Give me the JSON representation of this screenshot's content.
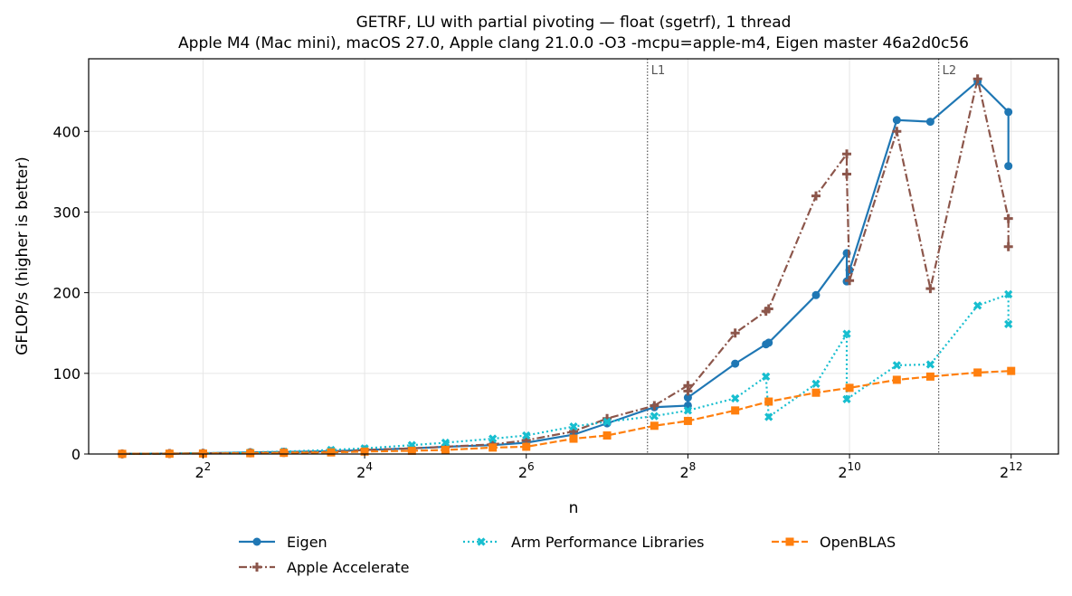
{
  "chart_data": {
    "type": "line",
    "title": "GETRF, LU with partial pivoting — float (sgetrf), 1 thread",
    "subtitle": "Apple M4 (Mac mini), macOS 27.0, Apple clang 21.0.0 -O3 -mcpu=apple-m4, Eigen master 46a2d0c56",
    "xlabel": "n",
    "ylabel": "GFLOP/s (higher is better)",
    "xscale": "log2",
    "xlim": [
      1.5,
      6144
    ],
    "ylim": [
      0,
      490
    ],
    "x_ticks": [
      {
        "base": "2",
        "exp": "2"
      },
      {
        "base": "2",
        "exp": "4"
      },
      {
        "base": "2",
        "exp": "6"
      },
      {
        "base": "2",
        "exp": "8"
      },
      {
        "base": "2",
        "exp": "10"
      },
      {
        "base": "2",
        "exp": "12"
      }
    ],
    "y_ticks": [
      "0",
      "100",
      "200",
      "300",
      "400"
    ],
    "grid": true,
    "legend_position": "bottom",
    "cache_markers": [
      {
        "label": "L1",
        "x": 181
      },
      {
        "label": "L2",
        "x": 2200
      }
    ],
    "series": [
      {
        "name": "Eigen",
        "color": "#1f77b4",
        "dash": "solid",
        "marker": "circle",
        "x": [
          2,
          3,
          4,
          6,
          8,
          12,
          16,
          24,
          32,
          48,
          64,
          96,
          128,
          192,
          256,
          256,
          384,
          500,
          512,
          768,
          1000,
          1000,
          1024,
          1536,
          2048,
          3072,
          4000,
          4000
        ],
        "y": [
          0.3,
          0.6,
          1,
          2,
          2.5,
          3.5,
          5,
          7,
          9,
          11,
          14,
          24,
          38,
          58,
          60,
          70,
          112,
          136,
          138,
          197,
          249,
          214,
          228,
          414,
          412,
          462,
          424,
          357
        ]
      },
      {
        "name": "Apple Accelerate",
        "color": "#8c564b",
        "dash": "dashdot",
        "marker": "plus",
        "x": [
          2,
          3,
          4,
          6,
          8,
          12,
          16,
          24,
          32,
          48,
          64,
          96,
          128,
          192,
          256,
          256,
          384,
          500,
          512,
          768,
          1000,
          1000,
          1024,
          1536,
          2048,
          3072,
          4000,
          4000
        ],
        "y": [
          0.2,
          0.5,
          0.8,
          1.5,
          2,
          3,
          5,
          7,
          9,
          12,
          17,
          28,
          44,
          60,
          85,
          78,
          150,
          177,
          180,
          320,
          372,
          347,
          215,
          400,
          205,
          465,
          292,
          257
        ]
      },
      {
        "name": "Arm Performance Libraries",
        "color": "#17becf",
        "dash": "dotted",
        "marker": "x",
        "x": [
          2,
          3,
          4,
          6,
          8,
          12,
          16,
          24,
          32,
          48,
          64,
          96,
          128,
          192,
          256,
          384,
          500,
          512,
          768,
          1000,
          1000,
          1536,
          2048,
          3072,
          4000,
          4000
        ],
        "y": [
          0.2,
          0.5,
          1,
          2,
          3,
          5,
          7,
          11,
          14,
          19,
          23,
          34,
          40,
          47,
          54,
          69,
          96,
          46,
          87,
          149,
          68,
          110,
          111,
          184,
          198,
          161
        ]
      },
      {
        "name": "OpenBLAS",
        "color": "#ff7f0e",
        "dash": "dashed",
        "marker": "square",
        "x": [
          2,
          3,
          4,
          6,
          8,
          12,
          16,
          24,
          32,
          48,
          64,
          96,
          128,
          192,
          256,
          384,
          512,
          768,
          1024,
          1536,
          2048,
          3072,
          4096
        ],
        "y": [
          0.2,
          0.4,
          0.6,
          1,
          1.5,
          2,
          3,
          4,
          5,
          8,
          9,
          19,
          23,
          35,
          41,
          54,
          65,
          76,
          82,
          92,
          96,
          101,
          103
        ]
      }
    ]
  }
}
